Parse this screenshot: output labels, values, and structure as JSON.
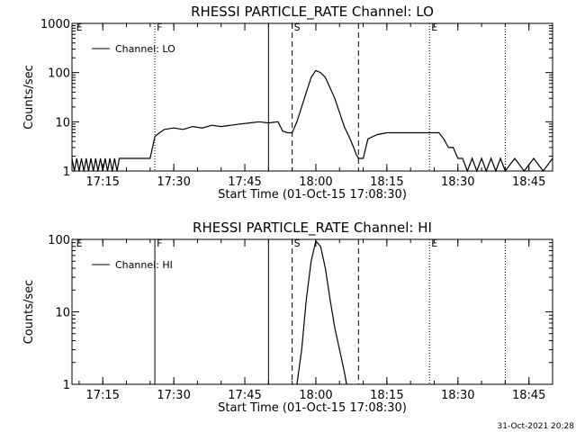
{
  "figure": {
    "footer_date": "31-Oct-2021 20:28"
  },
  "chart_data": [
    {
      "type": "line",
      "title": "RHESSI PARTICLE_RATE Channel: LO",
      "xlabel": "Start Time (01-Oct-15 17:08:30)",
      "ylabel": "Counts/sec",
      "y_scale": "log",
      "xlim": [
        "17:08:30",
        "18:50:00"
      ],
      "ylim": [
        1,
        1000
      ],
      "x_ticks": [
        "17:15",
        "17:30",
        "17:45",
        "18:00",
        "18:15",
        "18:30",
        "18:45"
      ],
      "y_ticks": [
        "1",
        "10",
        "100",
        "1000"
      ],
      "legend": "Channel: LO",
      "legend_position": "top-left",
      "markers": [
        {
          "label": "E",
          "time": "17:09:00",
          "style": "none"
        },
        {
          "label": "F",
          "time": "17:26:00",
          "style": "dotted"
        },
        {
          "label": "",
          "time": "17:50:00",
          "style": "solid"
        },
        {
          "label": "S",
          "time": "17:55:00",
          "style": "dashed"
        },
        {
          "label": "",
          "time": "18:09:00",
          "style": "dashed"
        },
        {
          "label": "E",
          "time": "18:24:00",
          "style": "dotted"
        },
        {
          "label": "",
          "time": "18:40:00",
          "style": "dotted"
        }
      ],
      "series": [
        {
          "name": "Channel: LO",
          "x": [
            "17:08:30",
            "17:09:00",
            "17:09:30",
            "17:10:00",
            "17:10:30",
            "17:11:00",
            "17:11:30",
            "17:12:00",
            "17:12:30",
            "17:13:00",
            "17:13:30",
            "17:14:00",
            "17:14:30",
            "17:15:00",
            "17:15:30",
            "17:16:00",
            "17:16:30",
            "17:17:00",
            "17:17:30",
            "17:18:00",
            "17:18:30",
            "17:19:00",
            "17:19:30",
            "17:20:00",
            "17:21:00",
            "17:22:00",
            "17:23:00",
            "17:24:00",
            "17:25:00",
            "17:26:00",
            "17:26:30",
            "17:27:00",
            "17:28:00",
            "17:30:00",
            "17:32:00",
            "17:34:00",
            "17:36:00",
            "17:38:00",
            "17:40:00",
            "17:42:00",
            "17:44:00",
            "17:46:00",
            "17:48:00",
            "17:50:00",
            "17:52:00",
            "17:53:00",
            "17:54:00",
            "17:55:00",
            "17:56:00",
            "17:58:00",
            "17:59:00",
            "18:00:00",
            "18:01:00",
            "18:02:00",
            "18:04:00",
            "18:06:00",
            "18:07:00",
            "18:08:00",
            "18:08:30",
            "18:09:00",
            "18:10:00",
            "18:11:00",
            "18:13:00",
            "18:15:00",
            "18:18:00",
            "18:21:00",
            "18:24:00",
            "18:25:00",
            "18:26:00",
            "18:27:00",
            "18:28:00",
            "18:29:00",
            "18:30:00",
            "18:31:00",
            "18:32:00",
            "18:33:00",
            "18:34:00",
            "18:35:00",
            "18:36:00",
            "18:37:00",
            "18:38:00",
            "18:39:00",
            "18:40:00",
            "18:42:00",
            "18:44:00",
            "18:46:00",
            "18:48:00",
            "18:50:00"
          ],
          "y": [
            1.8,
            1.0,
            1.8,
            1.0,
            1.8,
            1.0,
            1.8,
            1.0,
            1.8,
            1.0,
            1.8,
            1.0,
            1.8,
            1.0,
            1.8,
            1.0,
            1.8,
            1.0,
            1.8,
            1.0,
            1.8,
            1.8,
            1.8,
            1.8,
            1.8,
            1.8,
            1.8,
            1.8,
            1.8,
            5.0,
            5.5,
            6.0,
            7.0,
            7.5,
            7.0,
            8.0,
            7.5,
            8.5,
            8.0,
            8.5,
            9.0,
            9.5,
            10.0,
            9.5,
            10.0,
            6.5,
            6.0,
            6.0,
            10.0,
            40.0,
            80.0,
            110.0,
            100.0,
            80.0,
            30.0,
            8.0,
            5.0,
            3.0,
            2.2,
            1.8,
            1.8,
            4.5,
            5.5,
            6.0,
            6.0,
            6.0,
            6.0,
            6.0,
            6.0,
            4.5,
            3.0,
            3.0,
            1.8,
            1.8,
            1.0,
            1.8,
            1.0,
            1.8,
            1.0,
            1.8,
            1.0,
            1.8,
            1.0,
            1.8,
            1.0,
            1.8,
            1.0,
            1.8
          ]
        }
      ]
    },
    {
      "type": "line",
      "title": "RHESSI PARTICLE_RATE Channel: HI",
      "xlabel": "Start Time (01-Oct-15 17:08:30)",
      "ylabel": "Counts/sec",
      "y_scale": "log",
      "xlim": [
        "17:08:30",
        "18:50:00"
      ],
      "ylim": [
        1,
        100
      ],
      "x_ticks": [
        "17:15",
        "17:30",
        "17:45",
        "18:00",
        "18:15",
        "18:30",
        "18:45"
      ],
      "y_ticks": [
        "1",
        "10",
        "100"
      ],
      "legend": "Channel: HI",
      "legend_position": "top-left",
      "markers": [
        {
          "label": "E",
          "time": "17:09:00",
          "style": "none"
        },
        {
          "label": "F",
          "time": "17:26:00",
          "style": "solid"
        },
        {
          "label": "",
          "time": "17:50:00",
          "style": "solid"
        },
        {
          "label": "S",
          "time": "17:55:00",
          "style": "dashed"
        },
        {
          "label": "",
          "time": "18:09:00",
          "style": "dashed"
        },
        {
          "label": "E",
          "time": "18:24:00",
          "style": "dotted"
        },
        {
          "label": "",
          "time": "18:40:00",
          "style": "dotted"
        }
      ],
      "series": [
        {
          "name": "Channel: HI",
          "x": [
            "17:56:00",
            "17:57:00",
            "17:58:00",
            "17:59:00",
            "18:00:00",
            "18:01:00",
            "18:02:00",
            "18:03:00",
            "18:04:00",
            "18:05:00",
            "18:06:00",
            "18:06:30"
          ],
          "y": [
            1.0,
            3.0,
            15.0,
            50.0,
            95.0,
            80.0,
            40.0,
            15.0,
            6.0,
            3.0,
            1.5,
            1.0
          ]
        }
      ]
    }
  ]
}
